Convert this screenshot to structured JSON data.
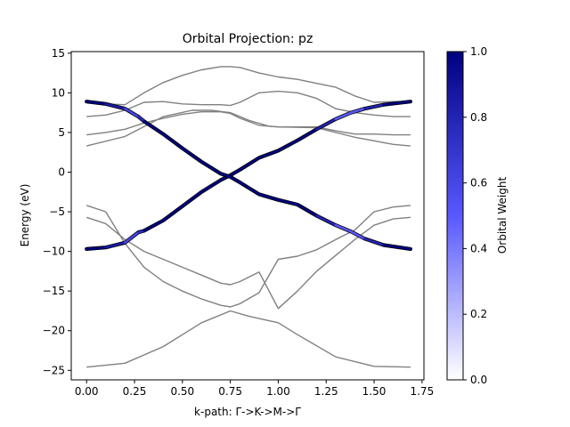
{
  "chart_data": {
    "type": "line",
    "title": "Orbital Projection: pz",
    "xlabel": "k-path: Γ->K->M->Γ",
    "ylabel": "Energy (eV)",
    "xlim": [
      -0.08,
      1.76
    ],
    "ylim": [
      -26.2,
      15.2
    ],
    "xticks": [
      0.0,
      0.25,
      0.5,
      0.75,
      1.0,
      1.25,
      1.5,
      1.75
    ],
    "xtick_labels": [
      "0.00",
      "0.25",
      "0.50",
      "0.75",
      "1.00",
      "1.25",
      "1.50",
      "1.75"
    ],
    "yticks": [
      15,
      10,
      5,
      0,
      -5,
      -10,
      -15,
      -20,
      -25
    ],
    "ytick_labels": [
      "15",
      "10",
      "5",
      "0",
      "−5",
      "−10",
      "−15",
      "−20",
      "−25"
    ],
    "grid": false,
    "high_symmetry_points": {
      "Gamma": 0.0,
      "K": 0.75,
      "M": 1.0,
      "Gamma_end": 1.69
    },
    "colorbar": {
      "label": "Orbital Weight",
      "min": 0.0,
      "max": 1.0,
      "ticks": [
        0.0,
        0.2,
        0.4,
        0.6,
        0.8,
        1.0
      ],
      "tick_labels": [
        "0.0",
        "0.2",
        "0.4",
        "0.6",
        "0.8",
        "1.0"
      ],
      "colors": [
        "#ffffff",
        "#5858ff",
        "#000080"
      ]
    },
    "band_color": "#808080",
    "series": [
      {
        "x": [
          0.0,
          0.2,
          0.4,
          0.6,
          0.75,
          0.85,
          1.0,
          1.1,
          1.3,
          1.5,
          1.69
        ],
        "y": [
          -24.6,
          -24.1,
          -22.0,
          -19.0,
          -17.5,
          -18.2,
          -19.0,
          -20.5,
          -23.3,
          -24.5,
          -24.6
        ]
      },
      {
        "x": [
          0.0,
          0.1,
          0.2,
          0.3,
          0.4,
          0.5,
          0.6,
          0.7,
          0.75,
          0.8,
          0.9,
          1.0,
          1.1,
          1.2,
          1.3,
          1.4,
          1.5,
          1.6,
          1.69
        ],
        "y": [
          -5.7,
          -6.5,
          -8.5,
          -10.0,
          -11.0,
          -12.0,
          -13.0,
          -14.0,
          -14.2,
          -13.8,
          -12.6,
          -17.2,
          -15.0,
          -12.5,
          -10.5,
          -8.5,
          -6.7,
          -5.9,
          -5.7
        ]
      },
      {
        "x": [
          0.0,
          0.1,
          0.2,
          0.3,
          0.4,
          0.5,
          0.6,
          0.7,
          0.75,
          0.8,
          0.9,
          1.0,
          1.1,
          1.2,
          1.3,
          1.4,
          1.5,
          1.6,
          1.69
        ],
        "y": [
          -4.2,
          -5.0,
          -9.0,
          -12.0,
          -13.8,
          -15.0,
          -16.0,
          -16.8,
          -17.0,
          -16.6,
          -15.2,
          -11.0,
          -10.6,
          -9.8,
          -8.5,
          -7.3,
          -5.0,
          -4.4,
          -4.2
        ]
      },
      {
        "x": [
          0.0,
          0.2,
          0.4,
          0.55,
          0.65,
          0.75,
          0.85,
          0.95,
          1.0,
          1.2,
          1.4,
          1.6,
          1.69
        ],
        "y": [
          3.3,
          4.5,
          7.0,
          7.8,
          7.8,
          7.5,
          6.5,
          5.8,
          5.7,
          5.6,
          4.4,
          3.5,
          3.3
        ]
      },
      {
        "x": [
          0.0,
          0.1,
          0.2,
          0.3,
          0.4,
          0.5,
          0.6,
          0.7,
          0.75,
          0.8,
          0.9,
          1.0,
          1.1,
          1.2,
          1.3,
          1.4,
          1.5,
          1.6,
          1.69
        ],
        "y": [
          4.7,
          5.0,
          5.4,
          6.2,
          6.8,
          7.3,
          7.6,
          7.6,
          7.4,
          6.8,
          5.9,
          5.7,
          5.7,
          5.7,
          5.2,
          4.8,
          4.8,
          4.7,
          4.7
        ]
      },
      {
        "x": [
          0.0,
          0.1,
          0.2,
          0.3,
          0.4,
          0.5,
          0.6,
          0.7,
          0.75,
          0.8,
          0.9,
          1.0,
          1.1,
          1.2,
          1.3,
          1.4,
          1.5,
          1.6,
          1.69
        ],
        "y": [
          7.0,
          7.2,
          7.8,
          8.8,
          8.9,
          8.6,
          8.5,
          8.5,
          8.4,
          8.8,
          10.0,
          10.2,
          10.0,
          9.3,
          8.0,
          7.5,
          7.2,
          7.0,
          7.0
        ]
      },
      {
        "x": [
          0.0,
          0.1,
          0.2,
          0.3,
          0.4,
          0.5,
          0.6,
          0.7,
          0.75,
          0.8,
          0.9,
          1.0,
          1.1,
          1.2,
          1.3,
          1.4,
          1.5,
          1.6,
          1.69
        ],
        "y": [
          8.9,
          8.6,
          8.5,
          10.0,
          11.3,
          12.2,
          12.9,
          13.3,
          13.3,
          13.2,
          12.5,
          12.0,
          11.7,
          11.2,
          10.7,
          9.6,
          8.8,
          8.9,
          8.9
        ]
      },
      {
        "x": [
          0.0,
          0.1,
          0.2,
          0.27,
          0.3,
          0.4,
          0.5,
          0.6,
          0.7,
          0.75,
          0.8,
          0.9,
          1.0,
          1.1,
          1.2,
          1.3,
          1.38,
          1.45,
          1.55,
          1.69
        ],
        "y": [
          -9.7,
          -9.5,
          -8.9,
          -7.6,
          -7.4,
          -6.1,
          -4.3,
          -2.5,
          -1.0,
          -0.4,
          0.3,
          1.8,
          2.7,
          4.0,
          5.4,
          6.7,
          7.5,
          8.0,
          8.5,
          8.9
        ],
        "weight": [
          1.0,
          1.0,
          0.7,
          0.5,
          1.0,
          1.0,
          1.0,
          1.0,
          1.0,
          1.0,
          1.0,
          1.0,
          1.0,
          1.0,
          1.0,
          0.6,
          0.4,
          0.6,
          1.0,
          1.0
        ]
      },
      {
        "x": [
          0.0,
          0.1,
          0.2,
          0.27,
          0.3,
          0.4,
          0.5,
          0.6,
          0.7,
          0.75,
          0.8,
          0.9,
          1.0,
          1.1,
          1.2,
          1.3,
          1.38,
          1.45,
          1.55,
          1.69
        ],
        "y": [
          8.9,
          8.6,
          8.0,
          7.0,
          6.4,
          4.8,
          3.0,
          1.3,
          -0.2,
          -0.6,
          -1.3,
          -2.8,
          -3.5,
          -4.1,
          -5.5,
          -6.7,
          -7.5,
          -8.4,
          -9.2,
          -9.7
        ],
        "weight": [
          1.0,
          1.0,
          0.7,
          0.5,
          1.0,
          1.0,
          1.0,
          1.0,
          1.0,
          1.0,
          1.0,
          1.0,
          1.0,
          1.0,
          1.0,
          0.6,
          0.4,
          0.6,
          1.0,
          1.0
        ]
      }
    ]
  }
}
